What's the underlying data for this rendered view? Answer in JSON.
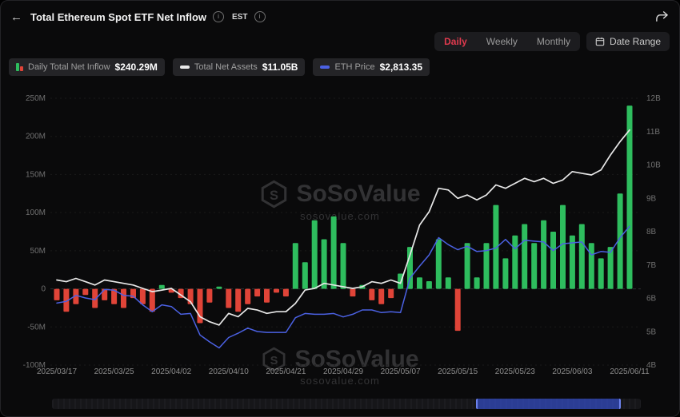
{
  "header": {
    "back_icon": "←",
    "title": "Total Ethereum Spot ETF Net Inflow",
    "timezone": "EST"
  },
  "controls": {
    "frequency_tabs": [
      {
        "label": "Daily",
        "active": true
      },
      {
        "label": "Weekly",
        "active": false
      },
      {
        "label": "Monthly",
        "active": false
      }
    ],
    "date_range_label": "Date Range",
    "active_tab_color": "#e03a4e"
  },
  "legend": [
    {
      "label": "Daily Total Net Inflow",
      "value": "$240.29M",
      "icon": "inflow-bars-icon",
      "color": "#2ebd5e"
    },
    {
      "label": "Total Net Assets",
      "value": "$11.05B",
      "icon": "net-assets-line-icon",
      "color": "#e8e8e8"
    },
    {
      "label": "ETH Price",
      "value": "$2,813.35",
      "icon": "eth-price-line-icon",
      "color": "#4b61e3"
    }
  ],
  "watermark": {
    "brand": "SoSoValue",
    "domain": "sosovalue.com"
  },
  "navigator": {
    "selection_start": 0.72,
    "selection_end": 0.96
  },
  "chart_data": {
    "type": "combo",
    "title": "Total Ethereum Spot ETF Net Inflow",
    "grid": "subtle-horizontal",
    "x": [
      "2025/03/17",
      "2025/03/18",
      "2025/03/19",
      "2025/03/20",
      "2025/03/21",
      "2025/03/24",
      "2025/03/25",
      "2025/03/26",
      "2025/03/27",
      "2025/03/28",
      "2025/03/31",
      "2025/04/01",
      "2025/04/02",
      "2025/04/03",
      "2025/04/04",
      "2025/04/07",
      "2025/04/08",
      "2025/04/09",
      "2025/04/10",
      "2025/04/11",
      "2025/04/14",
      "2025/04/15",
      "2025/04/16",
      "2025/04/17",
      "2025/04/21",
      "2025/04/22",
      "2025/04/23",
      "2025/04/24",
      "2025/04/25",
      "2025/04/28",
      "2025/04/29",
      "2025/04/30",
      "2025/05/01",
      "2025/05/02",
      "2025/05/05",
      "2025/05/06",
      "2025/05/07",
      "2025/05/08",
      "2025/05/09",
      "2025/05/12",
      "2025/05/13",
      "2025/05/14",
      "2025/05/15",
      "2025/05/16",
      "2025/05/19",
      "2025/05/20",
      "2025/05/21",
      "2025/05/22",
      "2025/05/23",
      "2025/05/27",
      "2025/05/28",
      "2025/05/29",
      "2025/05/30",
      "2025/06/02",
      "2025/06/03",
      "2025/06/04",
      "2025/06/05",
      "2025/06/06",
      "2025/06/09",
      "2025/06/10",
      "2025/06/11"
    ],
    "x_tick_labels": [
      "2025/03/17",
      "2025/03/25",
      "2025/04/02",
      "2025/04/10",
      "2025/04/21",
      "2025/04/29",
      "2025/05/07",
      "2025/05/15",
      "2025/05/23",
      "2025/06/03",
      "2025/06/11"
    ],
    "x_tick_indices": [
      0,
      6,
      12,
      18,
      24,
      30,
      36,
      42,
      48,
      54,
      60
    ],
    "series": [
      {
        "name": "Daily Total Net Inflow",
        "type": "bar",
        "axis": "left",
        "unit": "M",
        "pos_color": "#2ebd5e",
        "neg_color": "#e04438",
        "values": [
          -15,
          -30,
          -20,
          -8,
          -25,
          -15,
          -20,
          -25,
          -12,
          -20,
          -30,
          5,
          -5,
          -12,
          -20,
          -45,
          -18,
          3,
          -25,
          -30,
          -20,
          -10,
          -18,
          -5,
          -10,
          60,
          35,
          90,
          65,
          95,
          60,
          -10,
          5,
          -15,
          -20,
          -12,
          20,
          55,
          15,
          10,
          65,
          15,
          -55,
          60,
          15,
          60,
          110,
          40,
          70,
          85,
          60,
          90,
          75,
          110,
          70,
          85,
          60,
          40,
          55,
          125,
          240.29
        ]
      },
      {
        "name": "Total Net Assets",
        "type": "line",
        "axis": "right",
        "unit": "B",
        "color": "#e8e8e8",
        "values": [
          6.55,
          6.5,
          6.6,
          6.5,
          6.4,
          6.55,
          6.5,
          6.45,
          6.4,
          6.3,
          6.2,
          6.25,
          6.3,
          6.1,
          5.9,
          5.45,
          5.3,
          5.2,
          5.55,
          5.45,
          5.7,
          5.65,
          5.55,
          5.6,
          5.6,
          5.85,
          6.25,
          6.3,
          6.45,
          6.4,
          6.35,
          6.3,
          6.35,
          6.5,
          6.45,
          6.55,
          6.45,
          7.3,
          8.2,
          8.6,
          9.3,
          9.25,
          9.0,
          9.1,
          8.95,
          9.1,
          9.4,
          9.3,
          9.45,
          9.6,
          9.5,
          9.6,
          9.45,
          9.55,
          9.8,
          9.75,
          9.7,
          9.85,
          10.3,
          10.7,
          11.05
        ]
      },
      {
        "name": "ETH Price",
        "type": "line",
        "axis": "eth",
        "unit": "USD",
        "color": "#4b61e3",
        "values": [
          1920,
          1940,
          2010,
          1980,
          1960,
          2080,
          2070,
          2010,
          2000,
          1900,
          1820,
          1900,
          1880,
          1790,
          1800,
          1550,
          1470,
          1400,
          1520,
          1570,
          1630,
          1590,
          1580,
          1580,
          1580,
          1750,
          1800,
          1790,
          1790,
          1800,
          1760,
          1790,
          1840,
          1840,
          1810,
          1820,
          1810,
          2210,
          2350,
          2480,
          2680,
          2600,
          2540,
          2580,
          2520,
          2530,
          2560,
          2660,
          2550,
          2650,
          2640,
          2630,
          2530,
          2610,
          2620,
          2630,
          2480,
          2520,
          2510,
          2680,
          2813.35
        ]
      }
    ],
    "left_axis": {
      "ticks": [
        "-100M",
        "-50M",
        "0",
        "50M",
        "100M",
        "150M",
        "200M",
        "250M"
      ],
      "tick_values": [
        -100,
        -50,
        0,
        50,
        100,
        150,
        200,
        250
      ],
      "range": [
        -100,
        250
      ]
    },
    "right_axis": {
      "ticks": [
        "4B",
        "5B",
        "6B",
        "7B",
        "8B",
        "9B",
        "10B",
        "11B",
        "12B"
      ],
      "tick_values": [
        4,
        5,
        6,
        7,
        8,
        9,
        10,
        11,
        12
      ],
      "range": [
        4,
        12
      ]
    },
    "eth_axis_range": [
      1200,
      4300
    ],
    "legend_position": "top-left"
  }
}
